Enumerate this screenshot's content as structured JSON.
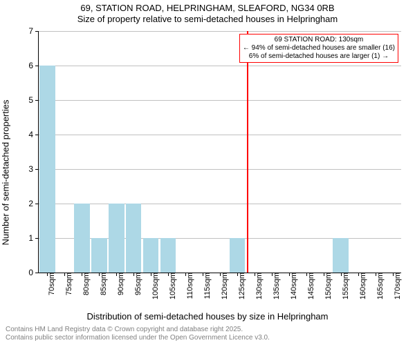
{
  "title": {
    "line1": "69, STATION ROAD, HELPRINGHAM, SLEAFORD, NG34 0RB",
    "line2": "Size of property relative to semi-detached houses in Helpringham"
  },
  "chart": {
    "type": "histogram",
    "ylabel": "Number of semi-detached properties",
    "xlabel": "Distribution of semi-detached houses by size in Helpringham",
    "ylim": [
      0,
      7
    ],
    "ytick_step": 1,
    "x_categories": [
      "70sqm",
      "75sqm",
      "80sqm",
      "85sqm",
      "90sqm",
      "95sqm",
      "100sqm",
      "105sqm",
      "110sqm",
      "115sqm",
      "120sqm",
      "125sqm",
      "130sqm",
      "135sqm",
      "140sqm",
      "145sqm",
      "150sqm",
      "155sqm",
      "160sqm",
      "165sqm",
      "170sqm"
    ],
    "values": [
      6,
      0,
      2,
      1,
      2,
      2,
      1,
      1,
      0,
      0,
      0,
      1,
      0,
      0,
      0,
      0,
      0,
      1,
      0,
      0,
      0
    ],
    "bar_color": "#add8e6",
    "grid_color": "#c0c0c0",
    "background_color": "#ffffff",
    "bar_width": 0.9,
    "marker": {
      "index": 12,
      "color": "#ff0000"
    },
    "annotation": {
      "line1": "69 STATION ROAD: 130sqm",
      "line2": "← 94% of semi-detached houses are smaller (16)",
      "line3": "6% of semi-detached houses are larger (1) →",
      "border_color": "#ff0000",
      "bg_color": "#ffffff"
    },
    "title_fontsize": 13,
    "label_fontsize": 13,
    "tick_fontsize": 11
  },
  "footer": {
    "line1": "Contains HM Land Registry data © Crown copyright and database right 2025.",
    "line2": "Contains public sector information licensed under the Open Government Licence v3.0."
  }
}
